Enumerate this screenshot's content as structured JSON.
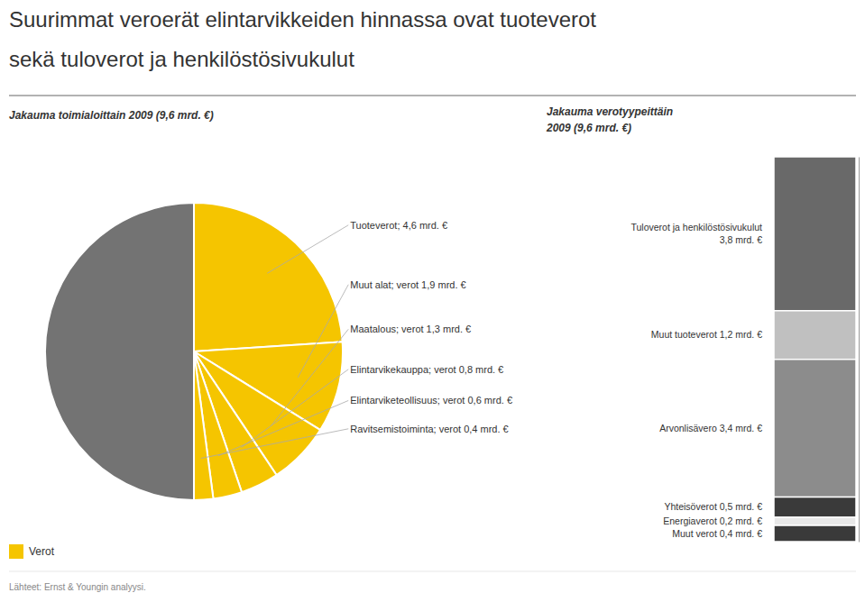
{
  "chart_data": [
    {
      "type": "pie",
      "title": [
        "Suurimmat veroerät elintarvikkeiden hinnassa ovat tuoteverot",
        "sekä tuloverot ja henkilöstösivukulut"
      ],
      "subtitle": "Jakauma toimialoittain 2009 (9,6 mrd. €)",
      "annotations": [
        "Lähteet: Ernst & Youngin analyysi."
      ],
      "categories": [
        "Tuoteverot; 4,6 mrd. €",
        "Muut alat; verot 1,9 mrd. €",
        "Maatalous; verot 1,3 mrd. €",
        "Elintarvikekauppa; verot 0,8 mrd. €",
        "Elintarviketeollisuus; verot 0,6 mrd. €",
        "Ravitsemistoiminta; verot 0,4 mrd. €",
        null
      ],
      "series": [
        {
          "name": "Verot",
          "color": "#F5C500",
          "values": [
            4.6,
            1.9,
            1.3,
            0.8,
            0.6,
            0.4,
            9.6
          ]
        }
      ],
      "colors": [
        "#F5C500",
        "#F5C500",
        "#F5C500",
        "#F5C500",
        "#F5C500",
        "#F5C500",
        "#737373"
      ]
    },
    {
      "type": "bar",
      "stacked": true,
      "subtitle": [
        "Jakauma verotyypeittäin",
        "2009  (9,6 mrd. €)"
      ],
      "ylim": [
        0,
        9.5
      ],
      "tick_labels": false,
      "series": [
        {
          "name": "Tuloverot ja henkilöstösivukulut\n3,8 mrd. €",
          "color": "#696969",
          "values": [
            3.8
          ]
        },
        {
          "name": "Muut tuoteverot 1,2 mrd. €",
          "color": "#C0C0C0",
          "values": [
            1.2
          ]
        },
        {
          "name": "Arvonlisävero 3,4 mrd. €",
          "color": "#8C8C8C",
          "values": [
            3.4
          ]
        },
        {
          "name": "Yhteisöverot 0,5 mrd. €",
          "color": "#3A3A3A",
          "values": [
            0.5
          ]
        },
        {
          "name": "Energiaverot 0,2 mrd. €",
          "color": "#E8E8E8",
          "values": [
            0.2
          ]
        },
        {
          "name": "Muut verot 0,4 mrd. €",
          "color": "#3A3A3A",
          "values": [
            0.4
          ]
        }
      ]
    }
  ]
}
